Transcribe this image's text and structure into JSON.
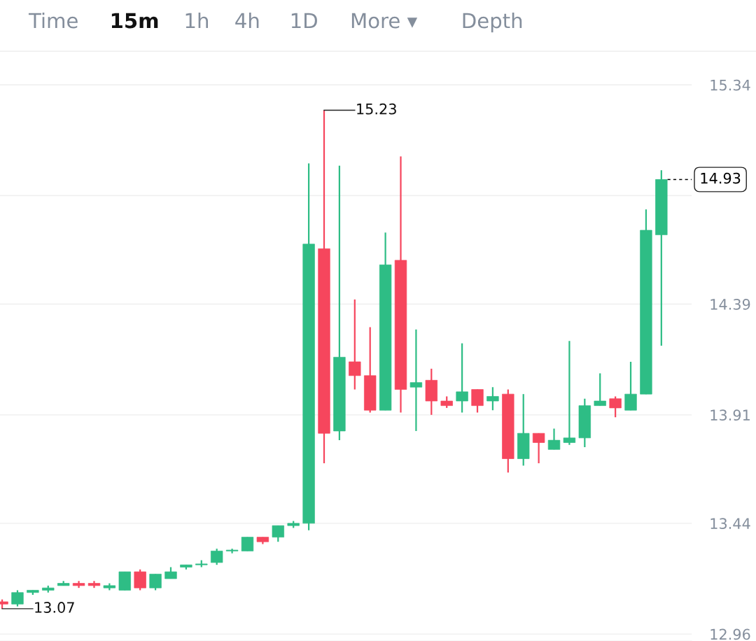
{
  "chart_data": {
    "type": "candlestick",
    "categories": [
      null,
      null,
      null,
      null,
      null,
      null,
      null,
      null,
      null,
      null,
      null,
      null,
      null,
      null,
      null,
      null,
      null,
      null,
      null,
      null,
      null,
      null,
      null,
      null,
      null,
      null,
      null,
      null,
      null,
      null,
      null,
      null,
      null,
      null,
      null,
      null,
      null,
      null,
      null,
      null,
      null,
      null,
      null,
      null
    ],
    "ohlc": [
      [
        13.1,
        13.11,
        13.07,
        13.09
      ],
      [
        13.09,
        13.15,
        13.08,
        13.14
      ],
      [
        13.14,
        13.15,
        13.13,
        13.15
      ],
      [
        13.15,
        13.17,
        13.14,
        13.16
      ],
      [
        13.17,
        13.19,
        13.17,
        13.18
      ],
      [
        13.18,
        13.19,
        13.16,
        13.17
      ],
      [
        13.18,
        13.19,
        13.16,
        13.17
      ],
      [
        13.16,
        13.18,
        13.15,
        13.17
      ],
      [
        13.15,
        13.23,
        13.15,
        13.23
      ],
      [
        13.23,
        13.24,
        13.15,
        13.16
      ],
      [
        13.16,
        13.22,
        13.15,
        13.22
      ],
      [
        13.2,
        13.25,
        13.2,
        13.23
      ],
      [
        13.25,
        13.26,
        13.24,
        13.26
      ],
      [
        13.26,
        13.28,
        13.25,
        13.26
      ],
      [
        13.27,
        13.33,
        13.26,
        13.32
      ],
      [
        13.32,
        13.33,
        13.31,
        13.32
      ],
      [
        13.32,
        13.38,
        13.32,
        13.38
      ],
      [
        13.38,
        13.38,
        13.35,
        13.36
      ],
      [
        13.38,
        13.43,
        13.36,
        13.43
      ],
      [
        13.43,
        13.45,
        13.42,
        13.44
      ],
      [
        13.44,
        15.0,
        13.41,
        14.65
      ],
      [
        14.63,
        15.23,
        13.7,
        13.83
      ],
      [
        13.84,
        14.99,
        13.8,
        14.16
      ],
      [
        14.14,
        14.41,
        14.02,
        14.08
      ],
      [
        14.08,
        14.29,
        13.92,
        13.93
      ],
      [
        13.93,
        14.7,
        13.93,
        14.56
      ],
      [
        14.58,
        15.03,
        13.92,
        14.02
      ],
      [
        14.03,
        14.28,
        13.84,
        14.05
      ],
      [
        14.06,
        14.11,
        13.91,
        13.97
      ],
      [
        13.97,
        13.99,
        13.94,
        13.95
      ],
      [
        13.97,
        14.22,
        13.92,
        14.01
      ],
      [
        14.02,
        14.02,
        13.92,
        13.95
      ],
      [
        13.97,
        14.03,
        13.93,
        13.99
      ],
      [
        14.0,
        14.02,
        13.66,
        13.72
      ],
      [
        13.72,
        14.0,
        13.69,
        13.83
      ],
      [
        13.83,
        13.83,
        13.7,
        13.79
      ],
      [
        13.76,
        13.85,
        13.76,
        13.8
      ],
      [
        13.79,
        14.23,
        13.78,
        13.81
      ],
      [
        13.81,
        13.98,
        13.77,
        13.95
      ],
      [
        13.95,
        14.09,
        13.95,
        13.97
      ],
      [
        13.98,
        13.99,
        13.9,
        13.94
      ],
      [
        13.93,
        14.14,
        13.93,
        14.0
      ],
      [
        14.0,
        14.8,
        14.0,
        14.71
      ],
      [
        14.69,
        14.97,
        14.21,
        14.93
      ]
    ],
    "colors": [
      "#f6465d",
      "#2ebd85",
      "#2ebd85",
      "#2ebd85",
      "#2ebd85",
      "#f6465d",
      "#f6465d",
      "#2ebd85",
      "#2ebd85",
      "#f6465d",
      "#2ebd85",
      "#2ebd85",
      "#2ebd85",
      "#2ebd85",
      "#2ebd85",
      "#2ebd85",
      "#2ebd85",
      "#f6465d",
      "#2ebd85",
      "#2ebd85",
      "#2ebd85",
      "#f6465d",
      "#2ebd85",
      "#f6465d",
      "#f6465d",
      "#2ebd85",
      "#f6465d",
      "#2ebd85",
      "#f6465d",
      "#f6465d",
      "#2ebd85",
      "#f6465d",
      "#2ebd85",
      "#f6465d",
      "#2ebd85",
      "#f6465d",
      "#2ebd85",
      "#2ebd85",
      "#2ebd85",
      "#2ebd85",
      "#f6465d",
      "#2ebd85",
      "#2ebd85",
      "#2ebd85"
    ],
    "ylim": [
      12.93,
      15.48
    ],
    "yticks": [
      15.34,
      {
        "value": 14.86,
        "label": null
      },
      14.39,
      13.91,
      13.44,
      12.96
    ],
    "grid": "y",
    "tick_labels": "y",
    "ref_lines": [
      {
        "axis": "y",
        "value": 14.93,
        "label": "14.93",
        "line_style": "dashed",
        "color": "#000000"
      }
    ],
    "annotations": [
      "15.23",
      "13.07",
      "Time",
      "15m",
      "1h",
      "4h",
      "1D",
      "More ▾",
      "Depth"
    ]
  }
}
